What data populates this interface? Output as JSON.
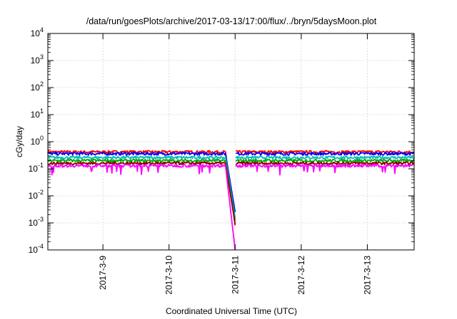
{
  "chart_data": {
    "type": "line",
    "title": "/data/run/goesPlots/archive/2017-03-13/17:00/flux/../bryn/5daysMoon.plot",
    "xlabel": "Coordinated Universal Time (UTC)",
    "ylabel": "cGy/day",
    "y_scale": "log",
    "ylim": [
      0.0001,
      10000
    ],
    "xlim": [
      "2017-03-08 04:00",
      "2017-03-13 17:00"
    ],
    "grid": true,
    "legend": "none",
    "x_tick_labels": [
      "2017-3-9",
      "2017-3-10",
      "2017-3-11",
      "2017-3-12",
      "2017-3-13"
    ],
    "y_ticks": [
      {
        "base": "10",
        "exp": "-4"
      },
      {
        "base": "10",
        "exp": "-3"
      },
      {
        "base": "10",
        "exp": "-2"
      },
      {
        "base": "10",
        "exp": "-1"
      },
      {
        "base": "10",
        "exp": "0"
      },
      {
        "base": "10",
        "exp": "1"
      },
      {
        "base": "10",
        "exp": "2"
      },
      {
        "base": "10",
        "exp": "3"
      },
      {
        "base": "10",
        "exp": "4"
      }
    ],
    "series": [
      {
        "color": "#ff0000",
        "level": 0.42,
        "dip_low": 0.0008
      },
      {
        "color": "#0000ff",
        "level": 0.36,
        "dip_low": 0.0025
      },
      {
        "color": "#00bfbf",
        "level": 0.26,
        "dip_low": 0.0015
      },
      {
        "color": "#00aa00",
        "level": 0.2,
        "dip_low": 0.0012
      },
      {
        "color": "#8b0000",
        "level": 0.16,
        "dip_low": 0.0009
      },
      {
        "color": "#ff00ff",
        "level": 0.13,
        "dip_low": 0.0001
      }
    ],
    "data_gap": {
      "start": "2017-03-10 20:00",
      "end": "2017-03-11 00:00"
    },
    "dip": {
      "start": "2017-03-10 20:30",
      "min": "2017-03-11 00:00"
    }
  }
}
